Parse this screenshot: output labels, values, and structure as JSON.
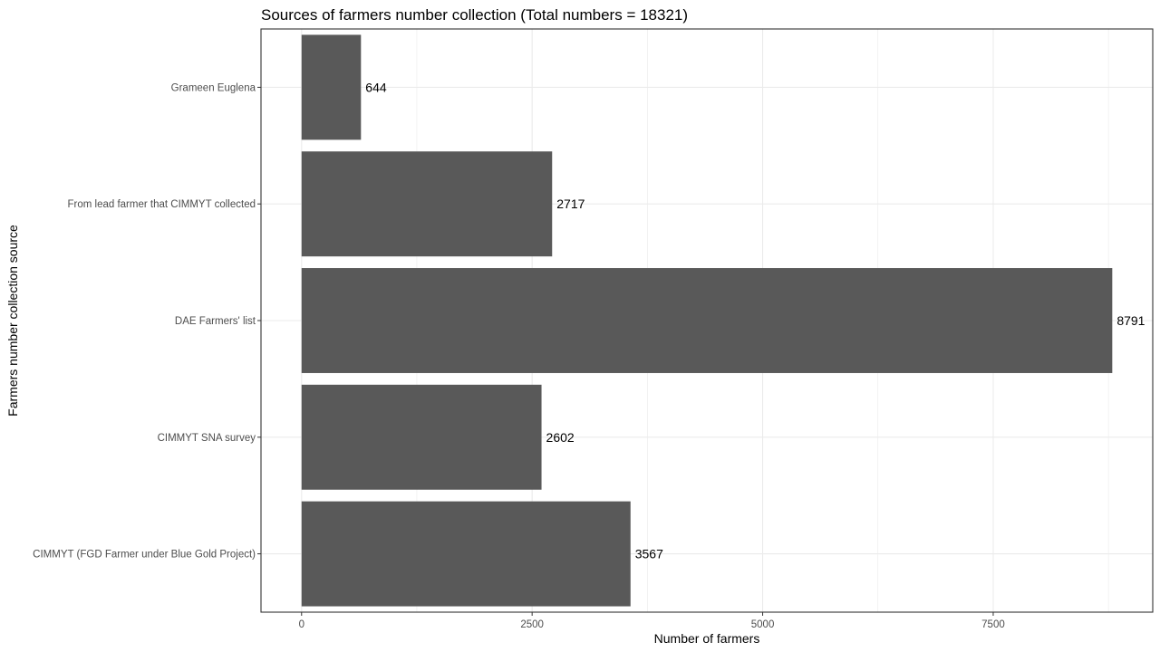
{
  "chart_data": {
    "type": "bar",
    "orientation": "horizontal",
    "title": "Sources of farmers number collection (Total numbers = 18321)",
    "xlabel": "Number of farmers",
    "ylabel": "Farmers number collection source",
    "categories": [
      "CIMMYT (FGD Farmer under Blue Gold Project)",
      "CIMMYT SNA survey",
      "DAE Farmers' list",
      "From lead farmer that CIMMYT collected",
      "Grameen Euglena"
    ],
    "values": [
      3567,
      2602,
      8791,
      2717,
      644
    ],
    "data_labels": [
      "3567",
      "2602",
      "8791",
      "2717",
      "644"
    ],
    "xlim": [
      -440,
      9230
    ],
    "x_ticks": [
      0,
      2500,
      5000,
      7500
    ],
    "x_tick_labels": [
      "0",
      "2500",
      "5000",
      "7500"
    ],
    "x_minor_ticks": [
      1250,
      3750,
      6250,
      8750
    ],
    "grid": true,
    "legend": "none",
    "colors": {
      "bar": "#595959",
      "grid": "#ebebeb",
      "panel_border": "#333333",
      "tick": "#333333"
    }
  }
}
